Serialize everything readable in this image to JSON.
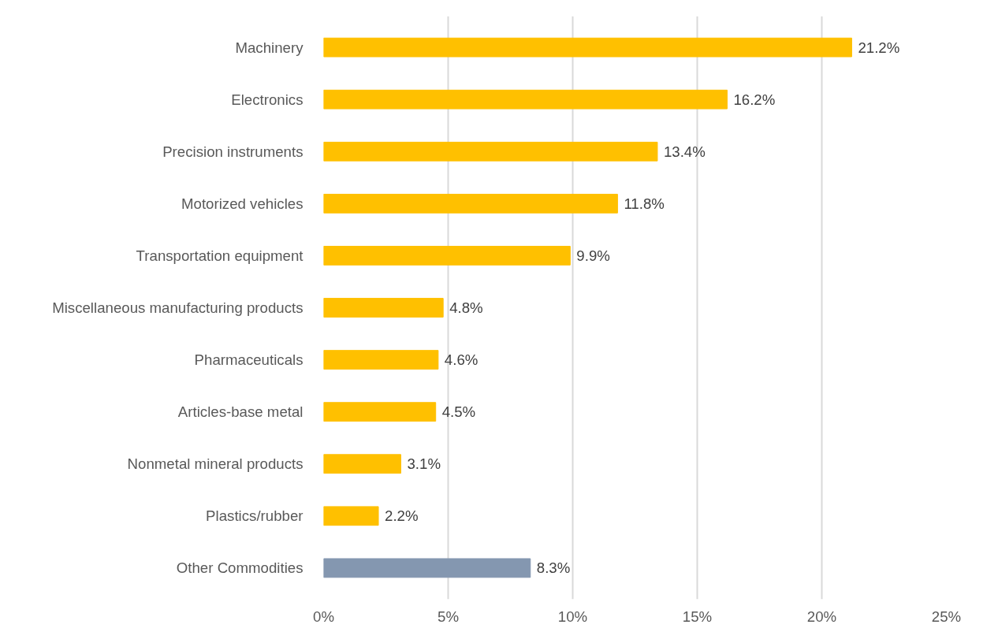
{
  "chart_data": {
    "type": "bar",
    "orientation": "horizontal",
    "categories": [
      "Machinery",
      "Electronics",
      "Precision instruments",
      "Motorized vehicles",
      "Transportation equipment",
      "Miscellaneous manufacturing products",
      "Pharmaceuticals",
      "Articles-base metal",
      "Nonmetal mineral products",
      "Plastics/rubber",
      "Other Commodities"
    ],
    "values": [
      21.2,
      16.2,
      13.4,
      11.8,
      9.9,
      4.8,
      4.6,
      4.5,
      3.1,
      2.2,
      8.3
    ],
    "colors": [
      "#ffc000",
      "#ffc000",
      "#ffc000",
      "#ffc000",
      "#ffc000",
      "#ffc000",
      "#ffc000",
      "#ffc000",
      "#ffc000",
      "#ffc000",
      "#8497b0"
    ],
    "value_labels": [
      "21.2%",
      "16.2%",
      "13.4%",
      "11.8%",
      "9.9%",
      "4.8%",
      "4.6%",
      "4.5%",
      "3.1%",
      "2.2%",
      "8.3%"
    ],
    "xlim": [
      0,
      25
    ],
    "xticks": [
      {
        "value": 0,
        "label": "0%"
      },
      {
        "value": 5,
        "label": "5%"
      },
      {
        "value": 10,
        "label": "10%"
      },
      {
        "value": 15,
        "label": "15%"
      },
      {
        "value": 20,
        "label": "20%"
      },
      {
        "value": 25,
        "label": "25%"
      }
    ],
    "grid": "x"
  }
}
